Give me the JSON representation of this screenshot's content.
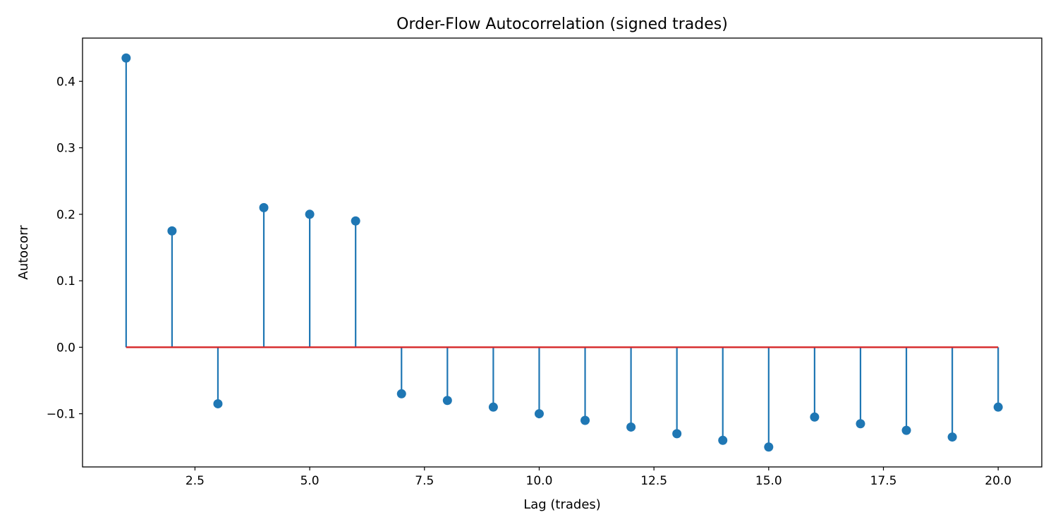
{
  "chart_data": {
    "type": "stem",
    "title": "Order-Flow Autocorrelation (signed trades)",
    "xlabel": "Lag (trades)",
    "ylabel": "Autocorr",
    "xlim": [
      0.05,
      20.95
    ],
    "ylim": [
      -0.18,
      0.465
    ],
    "xticks": [
      2.5,
      5.0,
      7.5,
      10.0,
      12.5,
      15.0,
      17.5,
      20.0
    ],
    "xtick_labels": [
      "2.5",
      "5.0",
      "7.5",
      "10.0",
      "12.5",
      "15.0",
      "17.5",
      "20.0"
    ],
    "yticks": [
      -0.1,
      0.0,
      0.1,
      0.2,
      0.3,
      0.4
    ],
    "ytick_labels": [
      "−0.1",
      "0.0",
      "0.1",
      "0.2",
      "0.3",
      "0.4"
    ],
    "grid": false,
    "baseline": 0,
    "colors": {
      "stem": "#1f77b4",
      "marker": "#1f77b4",
      "baseline": "#d62728"
    },
    "x": [
      1,
      2,
      3,
      4,
      5,
      6,
      7,
      8,
      9,
      10,
      11,
      12,
      13,
      14,
      15,
      16,
      17,
      18,
      19,
      20
    ],
    "values": [
      0.435,
      0.175,
      -0.085,
      0.21,
      0.2,
      0.19,
      -0.07,
      -0.08,
      -0.09,
      -0.1,
      -0.11,
      -0.12,
      -0.13,
      -0.14,
      -0.15,
      -0.105,
      -0.115,
      -0.125,
      -0.135,
      -0.09
    ]
  }
}
